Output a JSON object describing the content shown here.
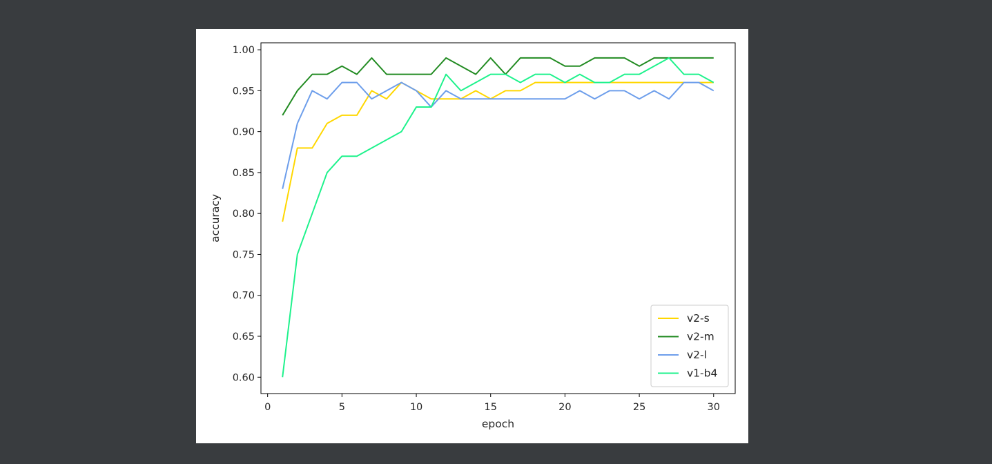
{
  "chart_data": {
    "type": "line",
    "title": "",
    "xlabel": "epoch",
    "ylabel": "accuracy",
    "xlim": [
      -0.45,
      31.45
    ],
    "ylim": [
      0.58,
      1.0085
    ],
    "xticks": [
      0,
      5,
      10,
      15,
      20,
      25,
      30
    ],
    "yticks": [
      0.6,
      0.65,
      0.7,
      0.75,
      0.8,
      0.85,
      0.9,
      0.95,
      1.0
    ],
    "ytick_labels": [
      "0.60",
      "0.65",
      "0.70",
      "0.75",
      "0.80",
      "0.85",
      "0.90",
      "0.95",
      "1.00"
    ],
    "grid": false,
    "legend_position": "lower-right",
    "x": [
      1,
      2,
      3,
      4,
      5,
      6,
      7,
      8,
      9,
      10,
      11,
      12,
      13,
      14,
      15,
      16,
      17,
      18,
      19,
      20,
      21,
      22,
      23,
      24,
      25,
      26,
      27,
      28,
      29,
      30
    ],
    "series": [
      {
        "name": "v2-s",
        "color": "#ffd700",
        "values": [
          0.79,
          0.88,
          0.88,
          0.91,
          0.92,
          0.92,
          0.95,
          0.94,
          0.96,
          0.95,
          0.94,
          0.94,
          0.94,
          0.95,
          0.94,
          0.95,
          0.95,
          0.96,
          0.96,
          0.96,
          0.96,
          0.96,
          0.96,
          0.96,
          0.96,
          0.96,
          0.96,
          0.96,
          0.96,
          0.96
        ]
      },
      {
        "name": "v2-m",
        "color": "#228b22",
        "values": [
          0.92,
          0.95,
          0.97,
          0.97,
          0.98,
          0.97,
          0.99,
          0.97,
          0.97,
          0.97,
          0.97,
          0.99,
          0.98,
          0.97,
          0.99,
          0.97,
          0.99,
          0.99,
          0.99,
          0.98,
          0.98,
          0.99,
          0.99,
          0.99,
          0.98,
          0.99,
          0.99,
          0.99,
          0.99,
          0.99
        ]
      },
      {
        "name": "v2-l",
        "color": "#6d9eeb",
        "values": [
          0.83,
          0.91,
          0.95,
          0.94,
          0.96,
          0.96,
          0.94,
          0.95,
          0.96,
          0.95,
          0.93,
          0.95,
          0.94,
          0.94,
          0.94,
          0.94,
          0.94,
          0.94,
          0.94,
          0.94,
          0.95,
          0.94,
          0.95,
          0.95,
          0.94,
          0.95,
          0.94,
          0.96,
          0.96,
          0.95
        ]
      },
      {
        "name": "v1-b4",
        "color": "#1ef28c",
        "values": [
          0.6,
          0.75,
          0.8,
          0.85,
          0.87,
          0.87,
          0.88,
          0.89,
          0.9,
          0.93,
          0.93,
          0.97,
          0.95,
          0.96,
          0.97,
          0.97,
          0.96,
          0.97,
          0.97,
          0.96,
          0.97,
          0.96,
          0.96,
          0.97,
          0.97,
          0.98,
          0.99,
          0.97,
          0.97,
          0.96
        ]
      }
    ]
  }
}
